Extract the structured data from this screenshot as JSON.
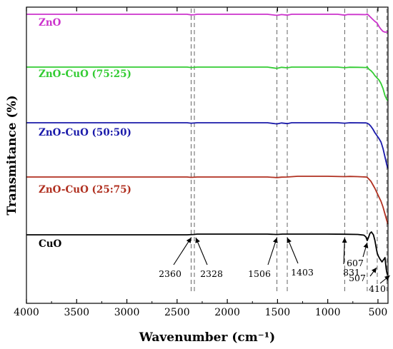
{
  "chart_data": {
    "type": "line",
    "xlabel": "Wavenumber (cm⁻¹)",
    "ylabel": "Transmitance (%)",
    "xlim": [
      4000,
      400
    ],
    "x_reversed": true,
    "y_ticks_shown": false,
    "x_ticks": [
      "4000",
      "3500",
      "3000",
      "2500",
      "2000",
      "1500",
      "1000",
      "500"
    ],
    "reference_lines": [
      2360,
      2328,
      1506,
      1403,
      831,
      607,
      507,
      410
    ],
    "annotations": [
      {
        "text": "2360",
        "target": 2360
      },
      {
        "text": "2328",
        "target": 2328
      },
      {
        "text": "1506",
        "target": 1506
      },
      {
        "text": "1403",
        "target": 1403
      },
      {
        "text": "831",
        "target": 831
      },
      {
        "text": "607",
        "target": 607
      },
      {
        "text": "507",
        "target": 507
      },
      {
        "text": "410",
        "target": 410
      }
    ],
    "series": [
      {
        "name": "ZnO",
        "color": "#cc33cc",
        "points": [
          [
            4000,
            0.0
          ],
          [
            3000,
            0.0
          ],
          [
            2400,
            0.0
          ],
          [
            2360,
            0.8
          ],
          [
            2330,
            0.6
          ],
          [
            2300,
            0.0
          ],
          [
            1600,
            0.0
          ],
          [
            1506,
            1.5
          ],
          [
            1460,
            0.4
          ],
          [
            1403,
            1.2
          ],
          [
            1360,
            0.0
          ],
          [
            900,
            0.0
          ],
          [
            831,
            1.2
          ],
          [
            800,
            0.3
          ],
          [
            700,
            0.3
          ],
          [
            620,
            0.5
          ],
          [
            607,
            -0.5
          ],
          [
            590,
            1.8
          ],
          [
            560,
            6
          ],
          [
            530,
            10
          ],
          [
            510,
            12
          ],
          [
            490,
            17
          ],
          [
            470,
            21
          ],
          [
            450,
            24
          ],
          [
            430,
            25
          ],
          [
            410,
            25
          ],
          [
            400,
            24
          ]
        ]
      },
      {
        "name": "ZnO-CuO (75:25)",
        "color": "#33cc33",
        "points": [
          [
            4000,
            0.0
          ],
          [
            3000,
            0.0
          ],
          [
            2400,
            0.0
          ],
          [
            2360,
            0.6
          ],
          [
            2300,
            0.0
          ],
          [
            1600,
            0.0
          ],
          [
            1506,
            1.8
          ],
          [
            1460,
            0.3
          ],
          [
            1403,
            1.0
          ],
          [
            1360,
            0.0
          ],
          [
            900,
            0.0
          ],
          [
            831,
            0.9
          ],
          [
            780,
            0.2
          ],
          [
            700,
            0.3
          ],
          [
            620,
            0.6
          ],
          [
            607,
            -0.4
          ],
          [
            590,
            3
          ],
          [
            570,
            5
          ],
          [
            550,
            8
          ],
          [
            530,
            12
          ],
          [
            510,
            15
          ],
          [
            490,
            18
          ],
          [
            470,
            23
          ],
          [
            450,
            30
          ],
          [
            430,
            40
          ],
          [
            410,
            46
          ],
          [
            400,
            47
          ]
        ]
      },
      {
        "name": "ZnO-CuO (50:50)",
        "color": "#1a1aaa",
        "points": [
          [
            4000,
            0.0
          ],
          [
            3000,
            0.0
          ],
          [
            2400,
            0.0
          ],
          [
            2360,
            0.6
          ],
          [
            2300,
            0.0
          ],
          [
            1600,
            0.0
          ],
          [
            1506,
            1.6
          ],
          [
            1460,
            0.3
          ],
          [
            1403,
            1.2
          ],
          [
            1360,
            0.0
          ],
          [
            900,
            0.0
          ],
          [
            831,
            0.6
          ],
          [
            780,
            0.0
          ],
          [
            620,
            0.2
          ],
          [
            607,
            0.6
          ],
          [
            590,
            2
          ],
          [
            570,
            5
          ],
          [
            550,
            9
          ],
          [
            530,
            14
          ],
          [
            510,
            18
          ],
          [
            490,
            22
          ],
          [
            470,
            27
          ],
          [
            450,
            36
          ],
          [
            430,
            48
          ],
          [
            410,
            60
          ],
          [
            400,
            64
          ]
        ]
      },
      {
        "name": "ZnO-CuO (25:75)",
        "color": "#b03020",
        "points": [
          [
            4000,
            0.0
          ],
          [
            3000,
            0.0
          ],
          [
            2400,
            0.0
          ],
          [
            2360,
            0.5
          ],
          [
            2300,
            0.0
          ],
          [
            1600,
            0.0
          ],
          [
            1506,
            0.8
          ],
          [
            1460,
            0.2
          ],
          [
            1403,
            0.0
          ],
          [
            1300,
            -1.0
          ],
          [
            1000,
            -1.0
          ],
          [
            831,
            -0.5
          ],
          [
            780,
            -0.8
          ],
          [
            700,
            -0.5
          ],
          [
            620,
            0.0
          ],
          [
            607,
            0.5
          ],
          [
            590,
            3
          ],
          [
            570,
            6
          ],
          [
            550,
            11
          ],
          [
            530,
            16
          ],
          [
            510,
            22
          ],
          [
            490,
            28
          ],
          [
            470,
            34
          ],
          [
            450,
            42
          ],
          [
            430,
            52
          ],
          [
            410,
            62
          ],
          [
            400,
            66
          ]
        ]
      },
      {
        "name": "CuO",
        "color": "#000000",
        "points": [
          [
            4000,
            0.0
          ],
          [
            3000,
            0.0
          ],
          [
            2400,
            0.0
          ],
          [
            2330,
            -0.5
          ],
          [
            2300,
            -1.0
          ],
          [
            2000,
            -1.0
          ],
          [
            1600,
            -1.0
          ],
          [
            1506,
            -0.5
          ],
          [
            1450,
            -1.0
          ],
          [
            1000,
            -1.0
          ],
          [
            831,
            -0.8
          ],
          [
            700,
            -0.5
          ],
          [
            640,
            0.5
          ],
          [
            620,
            3
          ],
          [
            607,
            8
          ],
          [
            595,
            4
          ],
          [
            580,
            -2
          ],
          [
            565,
            -4
          ],
          [
            545,
            0
          ],
          [
            530,
            8
          ],
          [
            515,
            20
          ],
          [
            507,
            26
          ],
          [
            495,
            30
          ],
          [
            480,
            34
          ],
          [
            460,
            38
          ],
          [
            445,
            35
          ],
          [
            430,
            32
          ],
          [
            418,
            48
          ],
          [
            410,
            54
          ],
          [
            400,
            56
          ]
        ]
      }
    ]
  }
}
